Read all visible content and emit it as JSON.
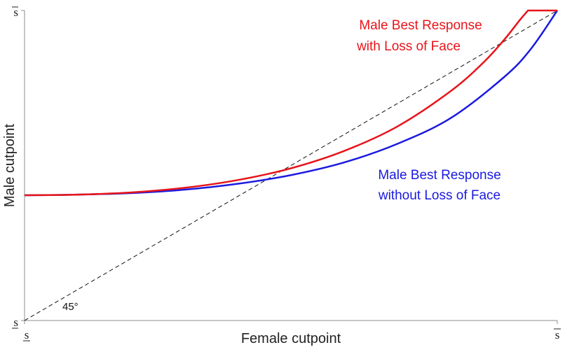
{
  "chart_data": {
    "type": "line",
    "xlabel": "Female cutpoint",
    "ylabel": "Male cutpoint",
    "x_tick_labels": {
      "low": "s",
      "high": "s"
    },
    "y_tick_labels": {
      "low": "s",
      "high": "s"
    },
    "xlim": [
      0,
      1
    ],
    "ylim": [
      0,
      1
    ],
    "grid": false,
    "legend": "none",
    "series": [
      {
        "name": "Male Best Response with Loss of Face",
        "color": "#e8141a",
        "style": "solid",
        "points": [
          [
            0,
            0.404
          ],
          [
            0.1,
            0.406
          ],
          [
            0.2,
            0.413
          ],
          [
            0.3,
            0.428
          ],
          [
            0.4,
            0.453
          ],
          [
            0.5,
            0.491
          ],
          [
            0.6,
            0.547
          ],
          [
            0.7,
            0.626
          ],
          [
            0.8,
            0.74
          ],
          [
            0.86,
            0.83
          ],
          [
            0.9,
            0.905
          ],
          [
            0.93,
            0.97
          ],
          [
            0.945,
            1.0
          ],
          [
            1.0,
            1.0
          ]
        ]
      },
      {
        "name": "Male Best Response without Loss of Face",
        "color": "#1a1ae0",
        "style": "solid",
        "points": [
          [
            0,
            0.404
          ],
          [
            0.1,
            0.406
          ],
          [
            0.2,
            0.411
          ],
          [
            0.3,
            0.422
          ],
          [
            0.4,
            0.441
          ],
          [
            0.5,
            0.469
          ],
          [
            0.6,
            0.51
          ],
          [
            0.7,
            0.57
          ],
          [
            0.8,
            0.653
          ],
          [
            0.9,
            0.785
          ],
          [
            0.95,
            0.875
          ],
          [
            1.0,
            1.0
          ]
        ]
      },
      {
        "name": "45°",
        "color": "#111111",
        "style": "dashed",
        "points": [
          [
            0,
            0
          ],
          [
            1,
            1
          ]
        ]
      }
    ],
    "annotations": {
      "red_label_line1": "Male Best Response",
      "red_label_line2": "with Loss of Face",
      "blue_label_line1": "Male Best Response",
      "blue_label_line2": "without Loss of Face",
      "angle_label": "45°"
    }
  }
}
